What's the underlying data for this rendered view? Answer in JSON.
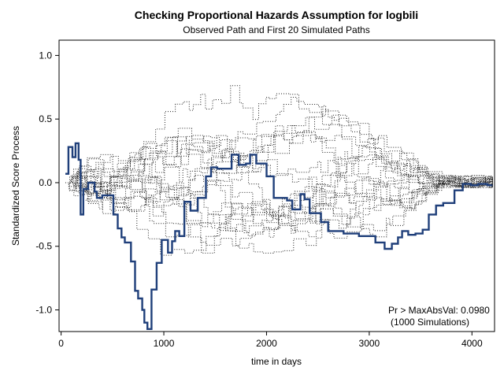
{
  "chart_data": {
    "type": "line",
    "title": "Checking Proportional Hazards Assumption for logbili",
    "subtitle": "Observed Path and First 20 Simulated Paths",
    "xlabel": "time in days",
    "ylabel": "Standardized Score Process",
    "xlim": [
      -20,
      4220
    ],
    "ylim": [
      -1.17,
      1.12
    ],
    "x_ticks": [
      0,
      1000,
      2000,
      3000,
      4000
    ],
    "x_tick_labels": [
      "0",
      "1000",
      "2000",
      "3000",
      "4000"
    ],
    "y_ticks": [
      -1.0,
      -0.5,
      0.0,
      0.5,
      1.0
    ],
    "y_tick_labels": [
      "-1.0",
      "-0.5",
      "0.0",
      "0.5",
      "1.0"
    ],
    "grid": false,
    "annotations": [
      "Pr > MaxAbsVal: 0.0980",
      "(1000 Simulations)"
    ],
    "observed_series": {
      "color": "#1f3f7a",
      "style": "step",
      "points": [
        [
          41,
          0.07
        ],
        [
          71,
          0.28
        ],
        [
          110,
          0.2
        ],
        [
          140,
          0.31
        ],
        [
          170,
          0.18
        ],
        [
          190,
          -0.25
        ],
        [
          216,
          -0.05
        ],
        [
          264,
          0.0
        ],
        [
          326,
          -0.07
        ],
        [
          348,
          -0.12
        ],
        [
          400,
          -0.1
        ],
        [
          509,
          -0.25
        ],
        [
          551,
          -0.36
        ],
        [
          588,
          -0.43
        ],
        [
          620,
          -0.47
        ],
        [
          680,
          -0.62
        ],
        [
          720,
          -0.85
        ],
        [
          750,
          -0.91
        ],
        [
          790,
          -1.0
        ],
        [
          810,
          -1.1
        ],
        [
          840,
          -1.15
        ],
        [
          880,
          -0.84
        ],
        [
          930,
          -0.63
        ],
        [
          980,
          -0.45
        ],
        [
          1040,
          -0.55
        ],
        [
          1080,
          -0.46
        ],
        [
          1110,
          -0.38
        ],
        [
          1150,
          -0.42
        ],
        [
          1200,
          -0.15
        ],
        [
          1260,
          -0.22
        ],
        [
          1330,
          -0.12
        ],
        [
          1410,
          0.05
        ],
        [
          1460,
          0.12
        ],
        [
          1520,
          0.11
        ],
        [
          1600,
          0.11
        ],
        [
          1660,
          0.22
        ],
        [
          1730,
          0.14
        ],
        [
          1800,
          0.15
        ],
        [
          1840,
          0.22
        ],
        [
          1900,
          0.15
        ],
        [
          2000,
          0.05
        ],
        [
          2070,
          -0.12
        ],
        [
          2200,
          -0.14
        ],
        [
          2250,
          -0.21
        ],
        [
          2330,
          -0.09
        ],
        [
          2370,
          -0.13
        ],
        [
          2420,
          -0.24
        ],
        [
          2530,
          -0.31
        ],
        [
          2600,
          -0.38
        ],
        [
          2750,
          -0.4
        ],
        [
          2900,
          -0.42
        ],
        [
          3060,
          -0.47
        ],
        [
          3150,
          -0.52
        ],
        [
          3220,
          -0.48
        ],
        [
          3280,
          -0.43
        ],
        [
          3320,
          -0.38
        ],
        [
          3380,
          -0.41
        ],
        [
          3450,
          -0.4
        ],
        [
          3520,
          -0.37
        ],
        [
          3580,
          -0.25
        ],
        [
          3650,
          -0.18
        ],
        [
          3720,
          -0.16
        ],
        [
          3830,
          -0.06
        ],
        [
          3910,
          -0.01
        ],
        [
          3990,
          -0.02
        ],
        [
          4060,
          -0.01
        ],
        [
          4150,
          -0.02
        ],
        [
          4200,
          -0.02
        ]
      ]
    },
    "simulated_paths_count": 20,
    "simulated_color": "#222222"
  }
}
